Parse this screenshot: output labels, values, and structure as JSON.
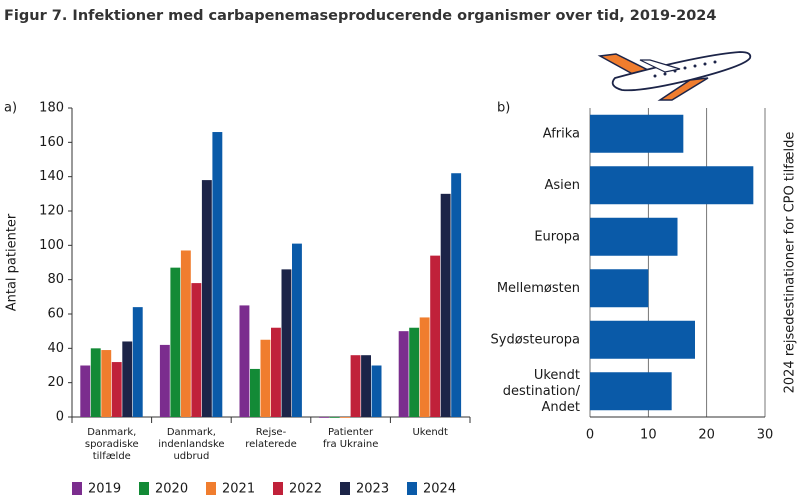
{
  "title": "Figur 7. Infektioner med carbapenemaseproducerende organismer over tid, 2019-2024",
  "chart_data": [
    {
      "type": "bar",
      "panel_label": "a)",
      "ylabel": "Antal patienter",
      "categories": [
        [
          "Danmark,",
          "sporadiske",
          "tilfælde"
        ],
        [
          "Danmark,",
          "indenlandske",
          "udbrud"
        ],
        [
          "Rejse-",
          "relaterede"
        ],
        [
          "Patienter",
          "fra Ukraine"
        ],
        [
          "Ukendt"
        ]
      ],
      "series": [
        {
          "name": "2019",
          "color": "#7b2d8e",
          "values": [
            30,
            42,
            65,
            0,
            50
          ]
        },
        {
          "name": "2020",
          "color": "#138a36",
          "values": [
            40,
            87,
            28,
            0,
            52
          ]
        },
        {
          "name": "2021",
          "color": "#f07d2e",
          "values": [
            39,
            97,
            45,
            0,
            58
          ]
        },
        {
          "name": "2022",
          "color": "#c0213a",
          "values": [
            32,
            78,
            52,
            36,
            94
          ]
        },
        {
          "name": "2023",
          "color": "#1c2448",
          "values": [
            44,
            138,
            86,
            36,
            130
          ]
        },
        {
          "name": "2024",
          "color": "#0a5aa8",
          "values": [
            64,
            166,
            101,
            30,
            142
          ]
        }
      ],
      "ylim": [
        0,
        180
      ],
      "yticks": [
        0,
        20,
        40,
        60,
        80,
        100,
        120,
        140,
        160,
        180
      ],
      "grid": false,
      "legend": "bottom"
    },
    {
      "type": "barh",
      "panel_label": "b)",
      "ylabel": "2024 rejsedestinationer for CPO tilfælde",
      "categories": [
        [
          "Afrika"
        ],
        [
          "Asien"
        ],
        [
          "Europa"
        ],
        [
          "Mellemøsten"
        ],
        [
          "Sydøsteuropa"
        ],
        [
          "Ukendt",
          "destination/",
          "Andet"
        ]
      ],
      "values": [
        16,
        28,
        15,
        10,
        18,
        14
      ],
      "color": "#0a5aa8",
      "xlim": [
        0,
        30
      ],
      "xticks": [
        0,
        10,
        20,
        30
      ],
      "grid": true
    }
  ]
}
